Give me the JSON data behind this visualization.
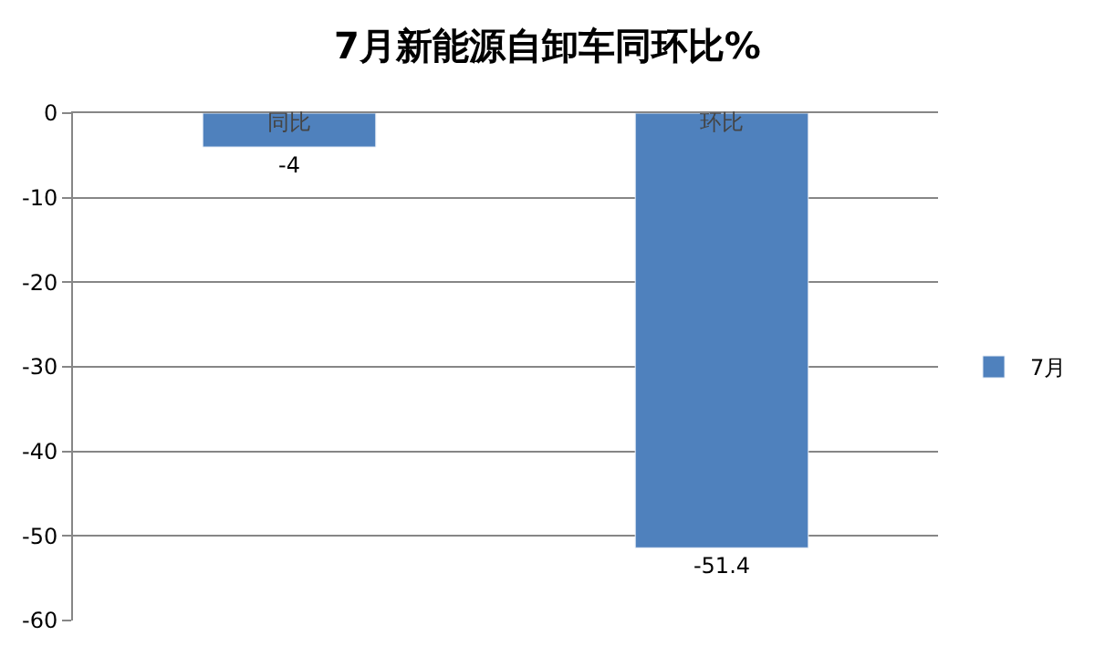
{
  "chart_data": {
    "type": "bar",
    "title": "7月新能源自卸车同环比%",
    "categories": [
      "同比",
      "环比"
    ],
    "series": [
      {
        "name": "7月",
        "color": "#4f81bd",
        "values": [
          -4,
          -51.4
        ]
      }
    ],
    "ylim": [
      -60,
      0
    ],
    "yticks": [
      0,
      -10,
      -20,
      -30,
      -40,
      -50,
      -60
    ],
    "grid": "y",
    "legend": "right",
    "data_labels": true
  }
}
